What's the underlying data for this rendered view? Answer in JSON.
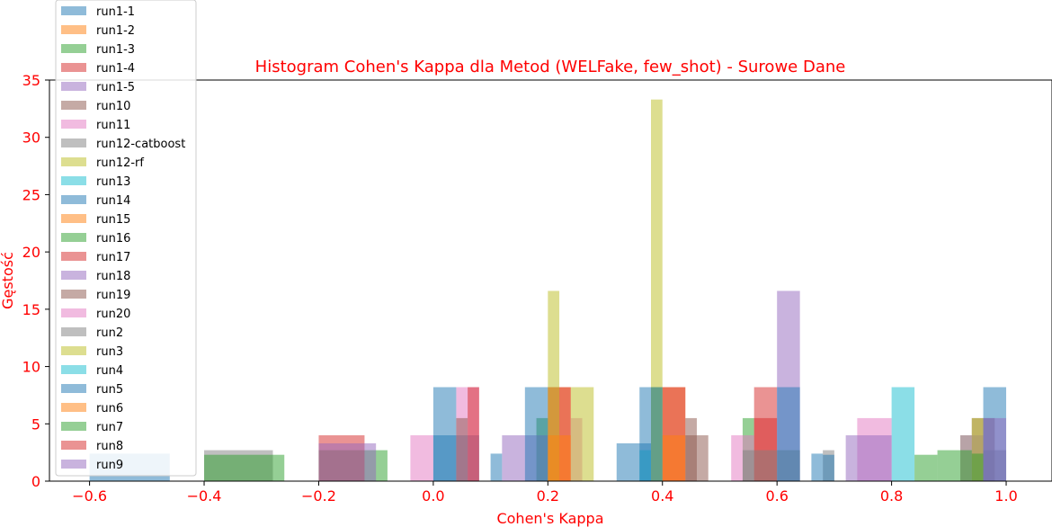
{
  "chart_data": {
    "type": "bar",
    "title": "Histogram Cohen's Kappa dla Metod (WELFake, few_shot) - Surowe Dane",
    "xlabel": "Cohen's Kappa",
    "ylabel": "Gęstość",
    "xlim": [
      -0.67,
      1.08
    ],
    "ylim": [
      0,
      35
    ],
    "xticks": [
      -0.6,
      -0.4,
      -0.2,
      0.0,
      0.2,
      0.4,
      0.6,
      0.8,
      1.0
    ],
    "xtick_labels": [
      "−0.6",
      "−0.4",
      "−0.2",
      "0.0",
      "0.2",
      "0.4",
      "0.6",
      "0.8",
      "1.0"
    ],
    "yticks": [
      0,
      5,
      10,
      15,
      20,
      25,
      30,
      35
    ],
    "ytick_labels": [
      "0",
      "5",
      "10",
      "15",
      "20",
      "25",
      "30",
      "35"
    ],
    "grid": false,
    "legend_position": "upper-left",
    "text_color": "#ff0000",
    "series": [
      {
        "name": "run1-1",
        "color": "#1f77b4",
        "bars": [
          [
            0.0,
            0.04,
            4.0
          ],
          [
            0.04,
            0.08,
            4.0
          ]
        ]
      },
      {
        "name": "run1-2",
        "color": "#ff7f0e",
        "bars": [
          [
            0.2,
            0.24,
            8.2
          ],
          [
            0.4,
            0.44,
            8.2
          ]
        ]
      },
      {
        "name": "run1-3",
        "color": "#2ca02c",
        "bars": [
          [
            0.18,
            0.2,
            5.5
          ],
          [
            0.38,
            0.4,
            8.2
          ],
          [
            0.54,
            0.56,
            5.5
          ]
        ]
      },
      {
        "name": "run1-4",
        "color": "#d62728",
        "bars": [
          [
            0.2,
            0.24,
            8.2
          ],
          [
            0.4,
            0.44,
            8.2
          ],
          [
            0.56,
            0.6,
            8.2
          ]
        ]
      },
      {
        "name": "run1-5",
        "color": "#9467bd",
        "bars": [
          [
            0.12,
            0.16,
            4.0
          ],
          [
            0.16,
            0.2,
            4.0
          ]
        ]
      },
      {
        "name": "run10",
        "color": "#8c564b",
        "bars": [
          [
            0.44,
            0.48,
            4.0
          ],
          [
            0.44,
            0.46,
            5.5
          ],
          [
            0.94,
            0.96,
            5.5
          ]
        ]
      },
      {
        "name": "run11",
        "color": "#e377c2",
        "bars": [
          [
            0.52,
            0.56,
            4.0
          ],
          [
            0.04,
            0.08,
            8.2
          ],
          [
            0.24,
            0.26,
            5.5
          ]
        ]
      },
      {
        "name": "run12-catboost",
        "color": "#7f7f7f",
        "bars": [
          [
            -0.4,
            -0.28,
            2.7
          ],
          [
            0.68,
            0.7,
            2.7
          ]
        ]
      },
      {
        "name": "run12-rf",
        "color": "#bcbd22",
        "bars": [
          [
            0.2,
            0.22,
            16.6
          ],
          [
            0.24,
            0.28,
            8.2
          ],
          [
            0.38,
            0.4,
            33.3
          ],
          [
            0.92,
            0.94,
            4.0
          ]
        ]
      },
      {
        "name": "run13",
        "color": "#17becf",
        "bars": [
          [
            0.8,
            0.84,
            8.2
          ]
        ]
      },
      {
        "name": "run14",
        "color": "#1f77b4",
        "bars": [
          [
            0.0,
            0.04,
            8.2
          ],
          [
            0.32,
            0.38,
            3.3
          ],
          [
            0.68,
            0.7,
            2.3
          ]
        ]
      },
      {
        "name": "run15",
        "color": "#ff7f0e",
        "bars": [
          [
            0.4,
            0.44,
            4.0
          ]
        ]
      },
      {
        "name": "run16",
        "color": "#2ca02c",
        "bars": [
          [
            -0.4,
            -0.26,
            2.3
          ],
          [
            -0.2,
            -0.08,
            2.7
          ],
          [
            0.84,
            0.88,
            2.3
          ]
        ]
      },
      {
        "name": "run17",
        "color": "#d62728",
        "bars": [
          [
            -0.2,
            -0.12,
            4.0
          ],
          [
            0.56,
            0.6,
            5.5
          ]
        ]
      },
      {
        "name": "run18",
        "color": "#9467bd",
        "bars": [
          [
            0.6,
            0.64,
            16.6
          ],
          [
            0.92,
            0.96,
            4.0
          ]
        ]
      },
      {
        "name": "run19",
        "color": "#8c564b",
        "bars": [
          [
            0.04,
            0.06,
            5.5
          ],
          [
            0.96,
            0.98,
            5.5
          ]
        ]
      },
      {
        "name": "run20",
        "color": "#e377c2",
        "bars": [
          [
            -0.04,
            0.0,
            4.0
          ],
          [
            0.74,
            0.8,
            5.5
          ]
        ]
      },
      {
        "name": "run2",
        "color": "#7f7f7f",
        "bars": [
          [
            0.54,
            0.6,
            2.7
          ],
          [
            0.6,
            0.64,
            2.7
          ],
          [
            0.96,
            1.0,
            2.7
          ]
        ]
      },
      {
        "name": "run3",
        "color": "#bcbd22",
        "bars": [
          [
            0.94,
            0.96,
            5.5
          ]
        ]
      },
      {
        "name": "run4",
        "color": "#17becf",
        "bars": [
          [
            0.36,
            0.38,
            2.7
          ]
        ]
      },
      {
        "name": "run5",
        "color": "#1f77b4",
        "bars": [
          [
            -0.6,
            -0.46,
            2.4
          ],
          [
            0.1,
            0.12,
            2.4
          ],
          [
            0.16,
            0.2,
            8.2
          ],
          [
            0.36,
            0.4,
            8.2
          ],
          [
            0.66,
            0.68,
            2.4
          ],
          [
            0.6,
            0.64,
            8.2
          ],
          [
            0.96,
            1.0,
            8.2
          ]
        ]
      },
      {
        "name": "run6",
        "color": "#ff7f0e",
        "bars": [
          [
            0.2,
            0.24,
            4.0
          ]
        ]
      },
      {
        "name": "run7",
        "color": "#2ca02c",
        "bars": [
          [
            0.88,
            0.94,
            2.7
          ],
          [
            0.94,
            0.96,
            2.4
          ]
        ]
      },
      {
        "name": "run8",
        "color": "#d62728",
        "bars": [
          [
            0.06,
            0.08,
            8.2
          ]
        ]
      },
      {
        "name": "run9",
        "color": "#9467bd",
        "bars": [
          [
            -0.2,
            -0.1,
            3.3
          ],
          [
            0.72,
            0.8,
            4.0
          ],
          [
            0.96,
            1.0,
            5.5
          ]
        ]
      }
    ]
  }
}
